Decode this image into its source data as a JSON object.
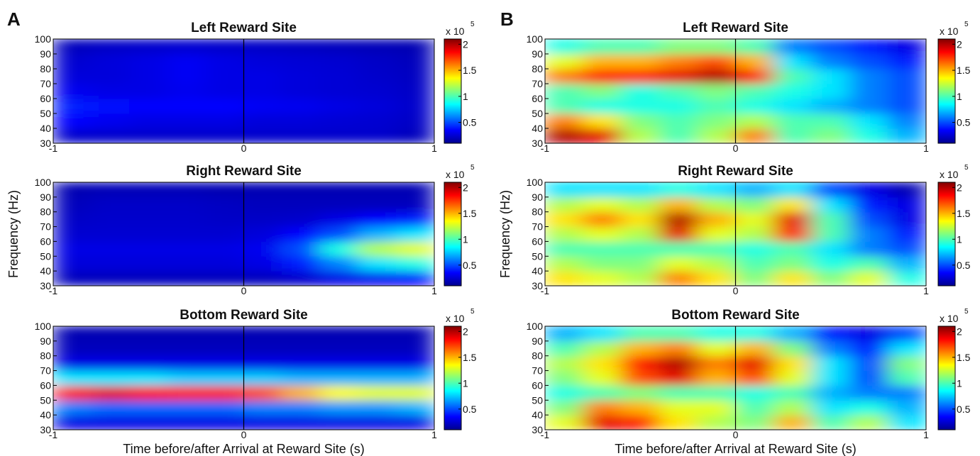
{
  "panel_labels": [
    "A",
    "B"
  ],
  "chart_data": [
    {
      "type": "heatmap",
      "title": "Left Reward Site",
      "xlim": [
        -1,
        1
      ],
      "ylim": [
        30,
        100
      ],
      "xticks": [
        -1,
        0,
        1
      ],
      "yticks": [
        30,
        40,
        50,
        60,
        70,
        80,
        90,
        100
      ],
      "clim": [
        0.1,
        2.1
      ],
      "cticks": [
        0.5,
        1,
        1.5,
        2
      ],
      "colorbar_label": "x 10",
      "colorbar_exponent": "5",
      "z": [
        [
          0.25,
          0.25,
          0.25,
          0.25,
          0.25,
          0.25,
          0.25,
          0.25,
          0.25,
          0.22
        ],
        [
          0.35,
          0.32,
          0.3,
          0.3,
          0.3,
          0.28,
          0.28,
          0.27,
          0.26,
          0.24
        ],
        [
          0.4,
          0.38,
          0.36,
          0.35,
          0.35,
          0.33,
          0.32,
          0.3,
          0.28,
          0.25
        ],
        [
          0.32,
          0.3,
          0.3,
          0.32,
          0.3,
          0.3,
          0.28,
          0.27,
          0.26,
          0.24
        ],
        [
          0.28,
          0.28,
          0.3,
          0.33,
          0.3,
          0.3,
          0.28,
          0.27,
          0.25,
          0.23
        ],
        [
          0.26,
          0.28,
          0.3,
          0.33,
          0.3,
          0.28,
          0.27,
          0.26,
          0.24,
          0.22
        ],
        [
          0.22,
          0.24,
          0.25,
          0.26,
          0.25,
          0.24,
          0.23,
          0.22,
          0.21,
          0.2
        ]
      ]
    },
    {
      "type": "heatmap",
      "title": "Right Reward Site",
      "ylabel": "Frequency (Hz)",
      "xlim": [
        -1,
        1
      ],
      "ylim": [
        30,
        100
      ],
      "xticks": [
        -1,
        0,
        1
      ],
      "yticks": [
        30,
        40,
        50,
        60,
        70,
        80,
        90,
        100
      ],
      "clim": [
        0.1,
        2.1
      ],
      "cticks": [
        0.5,
        1,
        1.5,
        2
      ],
      "colorbar_label": "x 10",
      "colorbar_exponent": "5",
      "z": [
        [
          0.22,
          0.22,
          0.22,
          0.22,
          0.22,
          0.22,
          0.25,
          0.3,
          0.32,
          0.35
        ],
        [
          0.28,
          0.28,
          0.28,
          0.28,
          0.28,
          0.3,
          0.4,
          0.6,
          0.8,
          0.9
        ],
        [
          0.3,
          0.3,
          0.3,
          0.3,
          0.3,
          0.32,
          0.5,
          0.9,
          1.2,
          1.3
        ],
        [
          0.26,
          0.26,
          0.26,
          0.26,
          0.26,
          0.28,
          0.35,
          0.5,
          0.7,
          0.8
        ],
        [
          0.24,
          0.25,
          0.25,
          0.25,
          0.24,
          0.24,
          0.25,
          0.3,
          0.35,
          0.4
        ],
        [
          0.22,
          0.24,
          0.24,
          0.24,
          0.23,
          0.22,
          0.22,
          0.22,
          0.22,
          0.22
        ],
        [
          0.2,
          0.21,
          0.21,
          0.21,
          0.2,
          0.2,
          0.2,
          0.2,
          0.2,
          0.2
        ]
      ]
    },
    {
      "type": "heatmap",
      "title": "Bottom Reward Site",
      "xlabel": "Time before/after Arrival at Reward Site (s)",
      "xlim": [
        -1,
        1
      ],
      "ylim": [
        30,
        100
      ],
      "xticks": [
        -1,
        0,
        1
      ],
      "yticks": [
        30,
        40,
        50,
        60,
        70,
        80,
        90,
        100
      ],
      "clim": [
        0.1,
        2.1
      ],
      "cticks": [
        0.5,
        1,
        1.5,
        2
      ],
      "colorbar_label": "x 10",
      "colorbar_exponent": "5",
      "z": [
        [
          0.3,
          0.3,
          0.3,
          0.3,
          0.3,
          0.3,
          0.3,
          0.3,
          0.3,
          0.3
        ],
        [
          0.6,
          0.55,
          0.55,
          0.55,
          0.55,
          0.6,
          0.6,
          0.65,
          0.65,
          0.7
        ],
        [
          1.8,
          1.9,
          1.85,
          1.8,
          1.8,
          1.7,
          1.5,
          1.35,
          1.3,
          1.3
        ],
        [
          0.8,
          0.8,
          0.8,
          0.75,
          0.75,
          0.75,
          0.7,
          0.7,
          0.7,
          0.7
        ],
        [
          0.3,
          0.3,
          0.3,
          0.3,
          0.3,
          0.3,
          0.3,
          0.3,
          0.3,
          0.3
        ],
        [
          0.22,
          0.22,
          0.22,
          0.22,
          0.22,
          0.22,
          0.22,
          0.22,
          0.22,
          0.22
        ],
        [
          0.2,
          0.2,
          0.2,
          0.2,
          0.2,
          0.2,
          0.2,
          0.2,
          0.2,
          0.2
        ]
      ]
    },
    {
      "type": "heatmap",
      "title": "Left Reward Site",
      "xlim": [
        -1,
        1
      ],
      "ylim": [
        30,
        100
      ],
      "xticks": [
        -1,
        0,
        1
      ],
      "yticks": [
        30,
        40,
        50,
        60,
        70,
        80,
        90,
        100
      ],
      "clim": [
        0.1,
        2.1
      ],
      "cticks": [
        0.5,
        1,
        1.5,
        2
      ],
      "colorbar_label": "x 10",
      "colorbar_exponent": "5",
      "z": [
        [
          2.0,
          1.9,
          1.2,
          1.0,
          1.2,
          1.6,
          1.0,
          1.1,
          0.9,
          0.7
        ],
        [
          1.6,
          1.4,
          1.1,
          1.0,
          1.1,
          1.2,
          1.0,
          1.0,
          0.8,
          0.6
        ],
        [
          1.0,
          0.9,
          0.9,
          0.9,
          1.0,
          0.9,
          0.8,
          0.7,
          0.6,
          0.5
        ],
        [
          1.0,
          1.1,
          0.9,
          1.0,
          1.1,
          1.0,
          0.9,
          0.8,
          0.6,
          0.5
        ],
        [
          1.6,
          1.8,
          1.8,
          1.9,
          2.0,
          1.8,
          1.0,
          0.8,
          0.6,
          0.5
        ],
        [
          1.3,
          1.5,
          1.5,
          1.6,
          1.7,
          1.5,
          0.8,
          0.6,
          0.5,
          0.4
        ],
        [
          0.9,
          1.0,
          1.0,
          1.1,
          1.1,
          1.0,
          0.6,
          0.5,
          0.4,
          0.3
        ]
      ]
    },
    {
      "type": "heatmap",
      "title": "Right Reward Site",
      "ylabel": "Frequency (Hz)",
      "xlim": [
        -1,
        1
      ],
      "ylim": [
        30,
        100
      ],
      "xticks": [
        -1,
        0,
        1
      ],
      "yticks": [
        30,
        40,
        50,
        60,
        70,
        80,
        90,
        100
      ],
      "clim": [
        0.1,
        2.1
      ],
      "cticks": [
        0.5,
        1,
        1.5,
        2
      ],
      "colorbar_label": "x 10",
      "colorbar_exponent": "5",
      "z": [
        [
          1.4,
          1.3,
          1.2,
          1.6,
          1.4,
          1.1,
          1.4,
          1.1,
          1.3,
          0.9
        ],
        [
          1.2,
          1.1,
          1.1,
          1.3,
          1.2,
          1.0,
          1.1,
          0.9,
          1.0,
          0.7
        ],
        [
          1.0,
          1.0,
          1.0,
          1.0,
          1.0,
          0.9,
          1.0,
          0.8,
          0.6,
          0.5
        ],
        [
          1.2,
          1.3,
          1.2,
          1.9,
          1.3,
          1.2,
          1.8,
          1.0,
          0.6,
          0.4
        ],
        [
          1.4,
          1.6,
          1.4,
          2.0,
          1.5,
          1.3,
          1.9,
          1.0,
          0.5,
          0.3
        ],
        [
          1.2,
          1.3,
          1.2,
          1.5,
          1.2,
          1.1,
          1.4,
          0.8,
          0.4,
          0.3
        ],
        [
          0.8,
          0.8,
          0.8,
          0.9,
          0.8,
          0.7,
          0.8,
          0.5,
          0.3,
          0.2
        ]
      ]
    },
    {
      "type": "heatmap",
      "title": "Bottom Reward Site",
      "xlabel": "Time before/after Arrival at Reward Site (s)",
      "xlim": [
        -1,
        1
      ],
      "ylim": [
        30,
        100
      ],
      "xticks": [
        -1,
        0,
        1
      ],
      "yticks": [
        30,
        40,
        50,
        60,
        70,
        80,
        90,
        100
      ],
      "clim": [
        0.1,
        2.1
      ],
      "cticks": [
        0.5,
        1,
        1.5,
        2
      ],
      "colorbar_label": "x 10",
      "colorbar_exponent": "5",
      "z": [
        [
          1.3,
          1.9,
          1.8,
          1.4,
          1.2,
          1.1,
          1.5,
          1.0,
          1.2,
          0.8
        ],
        [
          1.1,
          1.6,
          1.5,
          1.3,
          1.3,
          1.0,
          1.2,
          0.8,
          0.9,
          0.7
        ],
        [
          0.9,
          1.0,
          1.1,
          1.0,
          1.0,
          0.9,
          1.0,
          0.7,
          0.6,
          0.6
        ],
        [
          1.1,
          1.3,
          1.7,
          1.9,
          1.5,
          1.7,
          1.3,
          0.8,
          0.5,
          1.0
        ],
        [
          1.2,
          1.4,
          1.8,
          2.0,
          1.6,
          1.9,
          1.4,
          0.8,
          0.5,
          1.1
        ],
        [
          1.0,
          1.2,
          1.5,
          1.6,
          1.3,
          1.5,
          1.1,
          0.6,
          0.4,
          0.8
        ],
        [
          0.7,
          0.8,
          1.0,
          1.0,
          0.9,
          0.9,
          0.7,
          0.4,
          0.3,
          0.5
        ]
      ]
    }
  ]
}
